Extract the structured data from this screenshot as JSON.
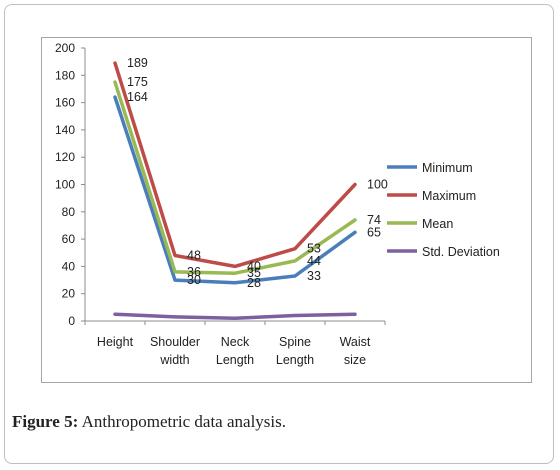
{
  "chart_data": {
    "type": "line",
    "categories": [
      "Height",
      "Shoulder width",
      "Neck Length",
      "Spine Length",
      "Waist size"
    ],
    "ylim": [
      0,
      200
    ],
    "yticks": [
      0,
      20,
      40,
      60,
      80,
      100,
      120,
      140,
      160,
      180,
      200
    ],
    "grid": false,
    "legend_position": "right",
    "series": [
      {
        "name": "Minimum",
        "color": "#4a7ebb",
        "values": [
          164,
          30,
          28,
          33,
          65
        ],
        "labels": [
          "164",
          "30",
          "28",
          "33",
          "65"
        ]
      },
      {
        "name": "Maximum",
        "color": "#be4b48",
        "values": [
          189,
          48,
          40,
          53,
          100
        ],
        "labels": [
          "189",
          "48",
          "40",
          "53",
          "100"
        ]
      },
      {
        "name": "Mean",
        "color": "#98b954",
        "values": [
          175,
          36,
          35,
          44,
          74
        ],
        "labels": [
          "175",
          "36",
          "35",
          "44",
          "74"
        ]
      },
      {
        "name": "Std. Deviation",
        "color": "#7d60a0",
        "values": [
          5,
          3,
          2,
          4,
          5
        ],
        "labels": []
      }
    ]
  },
  "caption": {
    "prefix": "Figure 5:",
    "text": " Anthropometric data analysis."
  }
}
